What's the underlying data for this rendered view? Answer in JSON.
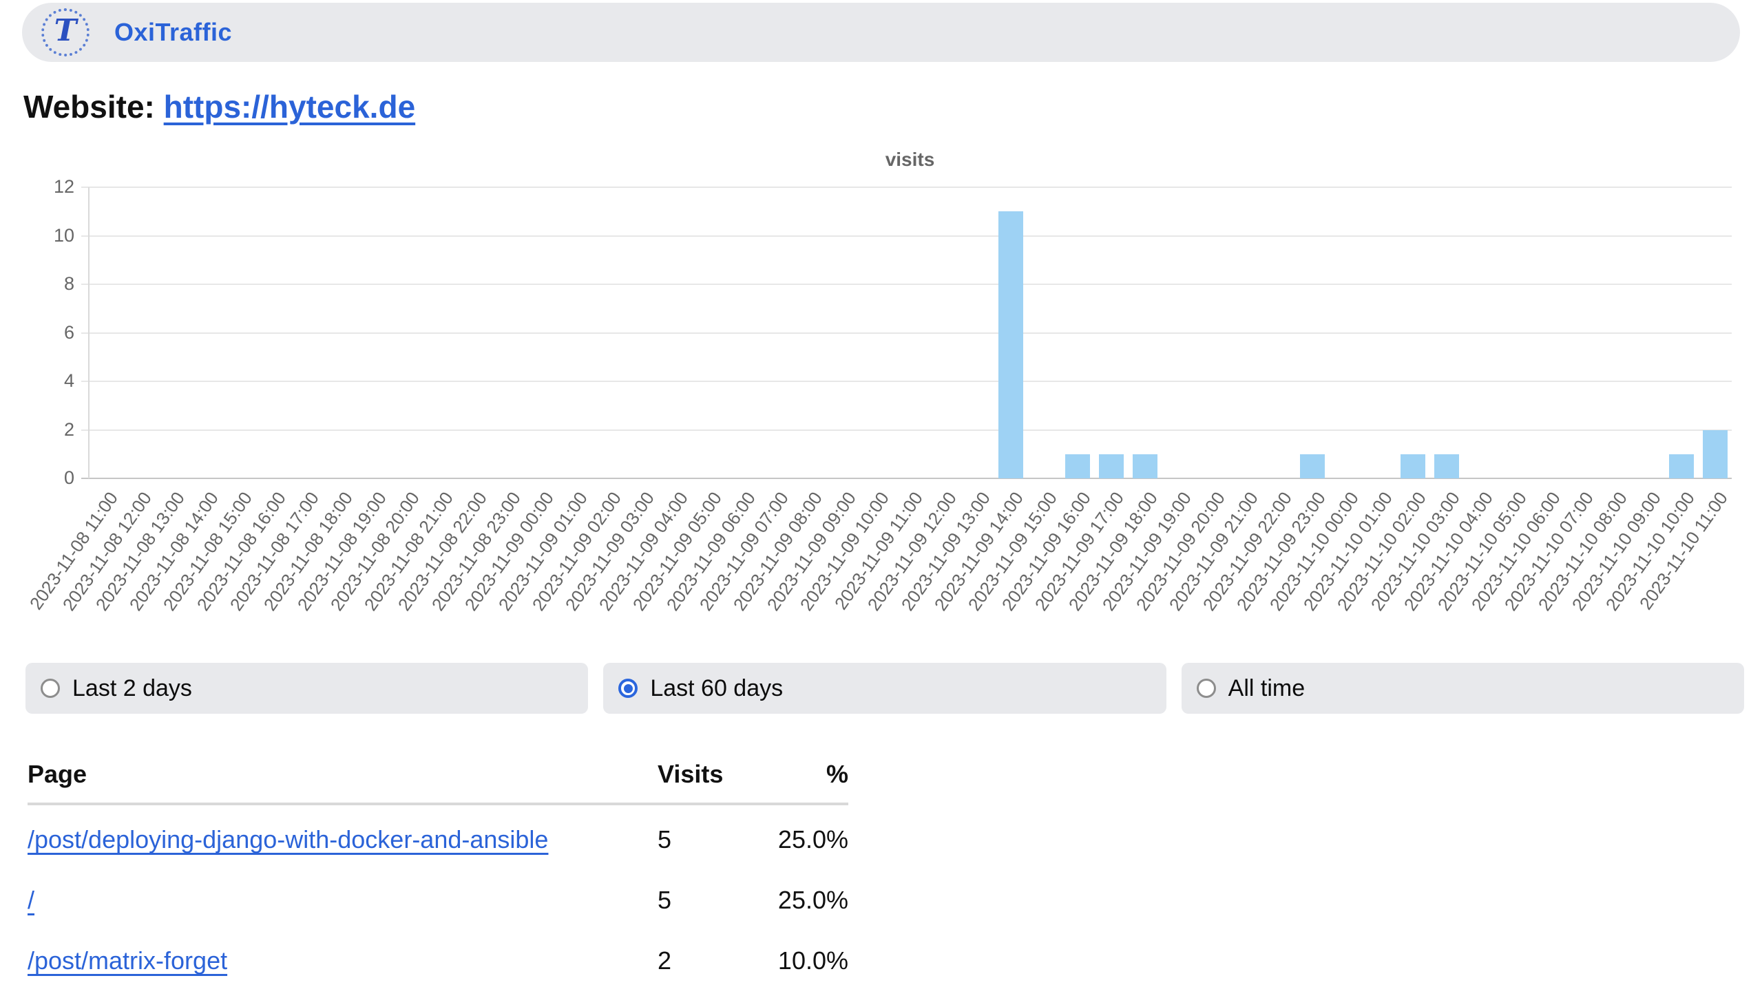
{
  "header": {
    "app_name": "OxiTraffic",
    "logo_letter": "T"
  },
  "website": {
    "label": "Website:",
    "url": "https://hyteck.de"
  },
  "chart_data": {
    "type": "bar",
    "title": "visits",
    "xlabel": "",
    "ylabel": "",
    "ylim": [
      0,
      12
    ],
    "yticks": [
      0,
      2,
      4,
      6,
      8,
      10,
      12
    ],
    "grid": true,
    "legend": "none",
    "bar_color": "#9ed2f4",
    "categories": [
      "2023-11-08 11:00",
      "2023-11-08 12:00",
      "2023-11-08 13:00",
      "2023-11-08 14:00",
      "2023-11-08 15:00",
      "2023-11-08 16:00",
      "2023-11-08 17:00",
      "2023-11-08 18:00",
      "2023-11-08 19:00",
      "2023-11-08 20:00",
      "2023-11-08 21:00",
      "2023-11-08 22:00",
      "2023-11-08 23:00",
      "2023-11-09 00:00",
      "2023-11-09 01:00",
      "2023-11-09 02:00",
      "2023-11-09 03:00",
      "2023-11-09 04:00",
      "2023-11-09 05:00",
      "2023-11-09 06:00",
      "2023-11-09 07:00",
      "2023-11-09 08:00",
      "2023-11-09 09:00",
      "2023-11-09 10:00",
      "2023-11-09 11:00",
      "2023-11-09 12:00",
      "2023-11-09 13:00",
      "2023-11-09 14:00",
      "2023-11-09 15:00",
      "2023-11-09 16:00",
      "2023-11-09 17:00",
      "2023-11-09 18:00",
      "2023-11-09 19:00",
      "2023-11-09 20:00",
      "2023-11-09 21:00",
      "2023-11-09 22:00",
      "2023-11-09 23:00",
      "2023-11-10 00:00",
      "2023-11-10 01:00",
      "2023-11-10 02:00",
      "2023-11-10 03:00",
      "2023-11-10 04:00",
      "2023-11-10 05:00",
      "2023-11-10 06:00",
      "2023-11-10 07:00",
      "2023-11-10 08:00",
      "2023-11-10 09:00",
      "2023-11-10 10:00",
      "2023-11-10 11:00"
    ],
    "values": [
      0,
      0,
      0,
      0,
      0,
      0,
      0,
      0,
      0,
      0,
      0,
      0,
      0,
      0,
      0,
      0,
      0,
      0,
      0,
      0,
      0,
      0,
      0,
      0,
      0,
      0,
      0,
      11,
      0,
      1,
      1,
      1,
      0,
      0,
      0,
      0,
      1,
      0,
      0,
      1,
      1,
      0,
      0,
      0,
      0,
      0,
      0,
      1,
      2
    ]
  },
  "time_range": {
    "options": [
      {
        "label": "Last 2 days",
        "selected": false
      },
      {
        "label": "Last 60 days",
        "selected": true
      },
      {
        "label": "All time",
        "selected": false
      }
    ]
  },
  "table": {
    "columns": [
      "Page",
      "Visits",
      "%"
    ],
    "rows": [
      {
        "page": "/post/deploying-django-with-docker-and-ansible",
        "visits": "5",
        "percent": "25.0%"
      },
      {
        "page": "/",
        "visits": "5",
        "percent": "25.0%"
      },
      {
        "page": "/post/matrix-forget",
        "visits": "2",
        "percent": "10.0%"
      }
    ]
  },
  "colors": {
    "accent_blue": "#2b63d8",
    "link_blue": "#2b63d8",
    "bar_fill": "#9ed2f4",
    "pill_bg": "#e8e9ec",
    "grid_line": "#e7e7e7",
    "axis_line": "#c6c6c6",
    "tick_text": "#666666"
  }
}
